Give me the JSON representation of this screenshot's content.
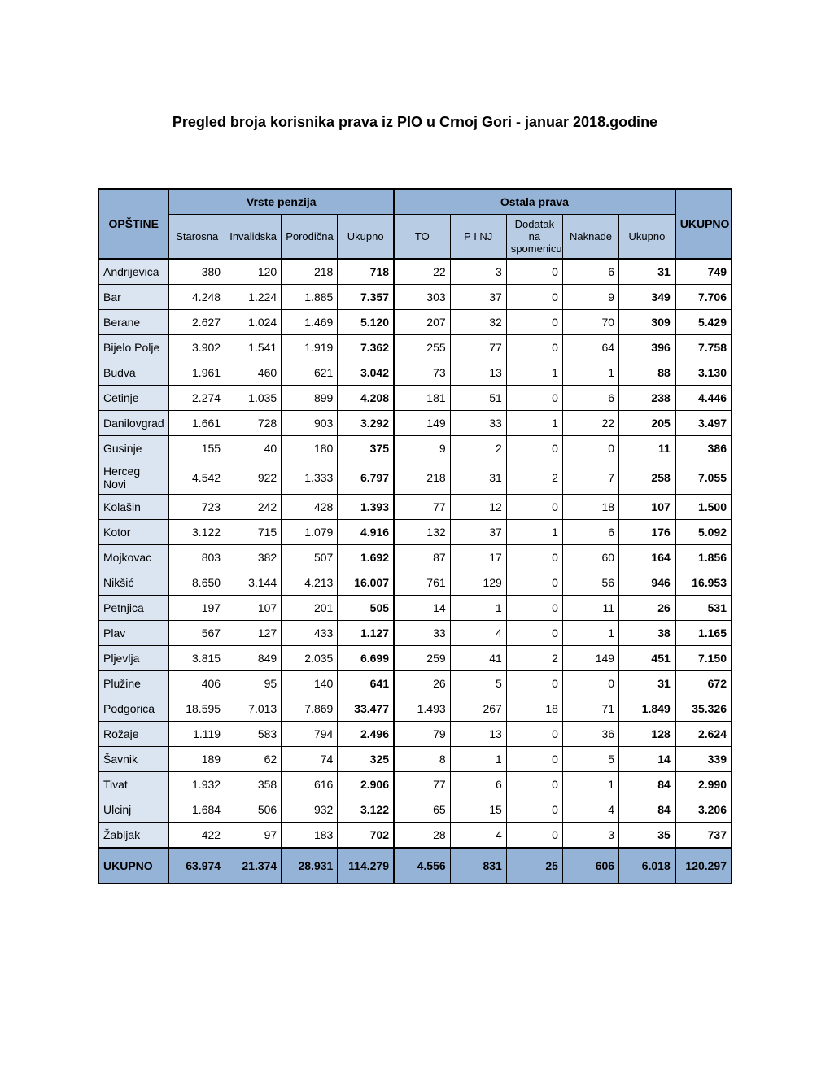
{
  "title": "Pregled broja korisnika prava iz PIO u Crnoj Gori - januar 2018.godine",
  "headers": {
    "opstine": "OPŠTINE",
    "vrste": "Vrste penzija",
    "ostala": "Ostala prava",
    "ukupno": "UKUPNO",
    "starosna": "Starosna",
    "invalidska": "Invalidska",
    "porodicna": "Porodična",
    "sub_ukupno1": "Ukupno",
    "to": "TO",
    "pinj": "P I NJ",
    "dodatak": "Dodatak na spomenicu",
    "naknade": "Naknade",
    "sub_ukupno2": "Ukupno",
    "total": "UKUPNO"
  },
  "rows": [
    {
      "op": "Andrijevica",
      "c": [
        "380",
        "120",
        "218",
        "718",
        "22",
        "3",
        "0",
        "6",
        "31",
        "749"
      ]
    },
    {
      "op": "Bar",
      "c": [
        "4.248",
        "1.224",
        "1.885",
        "7.357",
        "303",
        "37",
        "0",
        "9",
        "349",
        "7.706"
      ]
    },
    {
      "op": "Berane",
      "c": [
        "2.627",
        "1.024",
        "1.469",
        "5.120",
        "207",
        "32",
        "0",
        "70",
        "309",
        "5.429"
      ]
    },
    {
      "op": "Bijelo Polje",
      "c": [
        "3.902",
        "1.541",
        "1.919",
        "7.362",
        "255",
        "77",
        "0",
        "64",
        "396",
        "7.758"
      ]
    },
    {
      "op": "Budva",
      "c": [
        "1.961",
        "460",
        "621",
        "3.042",
        "73",
        "13",
        "1",
        "1",
        "88",
        "3.130"
      ]
    },
    {
      "op": "Cetinje",
      "c": [
        "2.274",
        "1.035",
        "899",
        "4.208",
        "181",
        "51",
        "0",
        "6",
        "238",
        "4.446"
      ]
    },
    {
      "op": "Danilovgrad",
      "c": [
        "1.661",
        "728",
        "903",
        "3.292",
        "149",
        "33",
        "1",
        "22",
        "205",
        "3.497"
      ]
    },
    {
      "op": "Gusinje",
      "c": [
        "155",
        "40",
        "180",
        "375",
        "9",
        "2",
        "0",
        "0",
        "11",
        "386"
      ]
    },
    {
      "op": "Herceg Novi",
      "c": [
        "4.542",
        "922",
        "1.333",
        "6.797",
        "218",
        "31",
        "2",
        "7",
        "258",
        "7.055"
      ]
    },
    {
      "op": "Kolašin",
      "c": [
        "723",
        "242",
        "428",
        "1.393",
        "77",
        "12",
        "0",
        "18",
        "107",
        "1.500"
      ]
    },
    {
      "op": "Kotor",
      "c": [
        "3.122",
        "715",
        "1.079",
        "4.916",
        "132",
        "37",
        "1",
        "6",
        "176",
        "5.092"
      ]
    },
    {
      "op": "Mojkovac",
      "c": [
        "803",
        "382",
        "507",
        "1.692",
        "87",
        "17",
        "0",
        "60",
        "164",
        "1.856"
      ]
    },
    {
      "op": "Nikšić",
      "c": [
        "8.650",
        "3.144",
        "4.213",
        "16.007",
        "761",
        "129",
        "0",
        "56",
        "946",
        "16.953"
      ]
    },
    {
      "op": "Petnjica",
      "c": [
        "197",
        "107",
        "201",
        "505",
        "14",
        "1",
        "0",
        "11",
        "26",
        "531"
      ]
    },
    {
      "op": "Plav",
      "c": [
        "567",
        "127",
        "433",
        "1.127",
        "33",
        "4",
        "0",
        "1",
        "38",
        "1.165"
      ]
    },
    {
      "op": "Pljevlja",
      "c": [
        "3.815",
        "849",
        "2.035",
        "6.699",
        "259",
        "41",
        "2",
        "149",
        "451",
        "7.150"
      ]
    },
    {
      "op": "Plužine",
      "c": [
        "406",
        "95",
        "140",
        "641",
        "26",
        "5",
        "0",
        "0",
        "31",
        "672"
      ]
    },
    {
      "op": "Podgorica",
      "c": [
        "18.595",
        "7.013",
        "7.869",
        "33.477",
        "1.493",
        "267",
        "18",
        "71",
        "1.849",
        "35.326"
      ]
    },
    {
      "op": "Rožaje",
      "c": [
        "1.119",
        "583",
        "794",
        "2.496",
        "79",
        "13",
        "0",
        "36",
        "128",
        "2.624"
      ]
    },
    {
      "op": "Šavnik",
      "c": [
        "189",
        "62",
        "74",
        "325",
        "8",
        "1",
        "0",
        "5",
        "14",
        "339"
      ]
    },
    {
      "op": "Tivat",
      "c": [
        "1.932",
        "358",
        "616",
        "2.906",
        "77",
        "6",
        "0",
        "1",
        "84",
        "2.990"
      ]
    },
    {
      "op": "Ulcinj",
      "c": [
        "1.684",
        "506",
        "932",
        "3.122",
        "65",
        "15",
        "0",
        "4",
        "84",
        "3.206"
      ]
    },
    {
      "op": "Žabljak",
      "c": [
        "422",
        "97",
        "183",
        "702",
        "28",
        "4",
        "0",
        "3",
        "35",
        "737"
      ]
    }
  ],
  "total": {
    "op": "UKUPNO",
    "c": [
      "63.974",
      "21.374",
      "28.931",
      "114.279",
      "4.556",
      "831",
      "25",
      "606",
      "6.018",
      "120.297"
    ]
  }
}
